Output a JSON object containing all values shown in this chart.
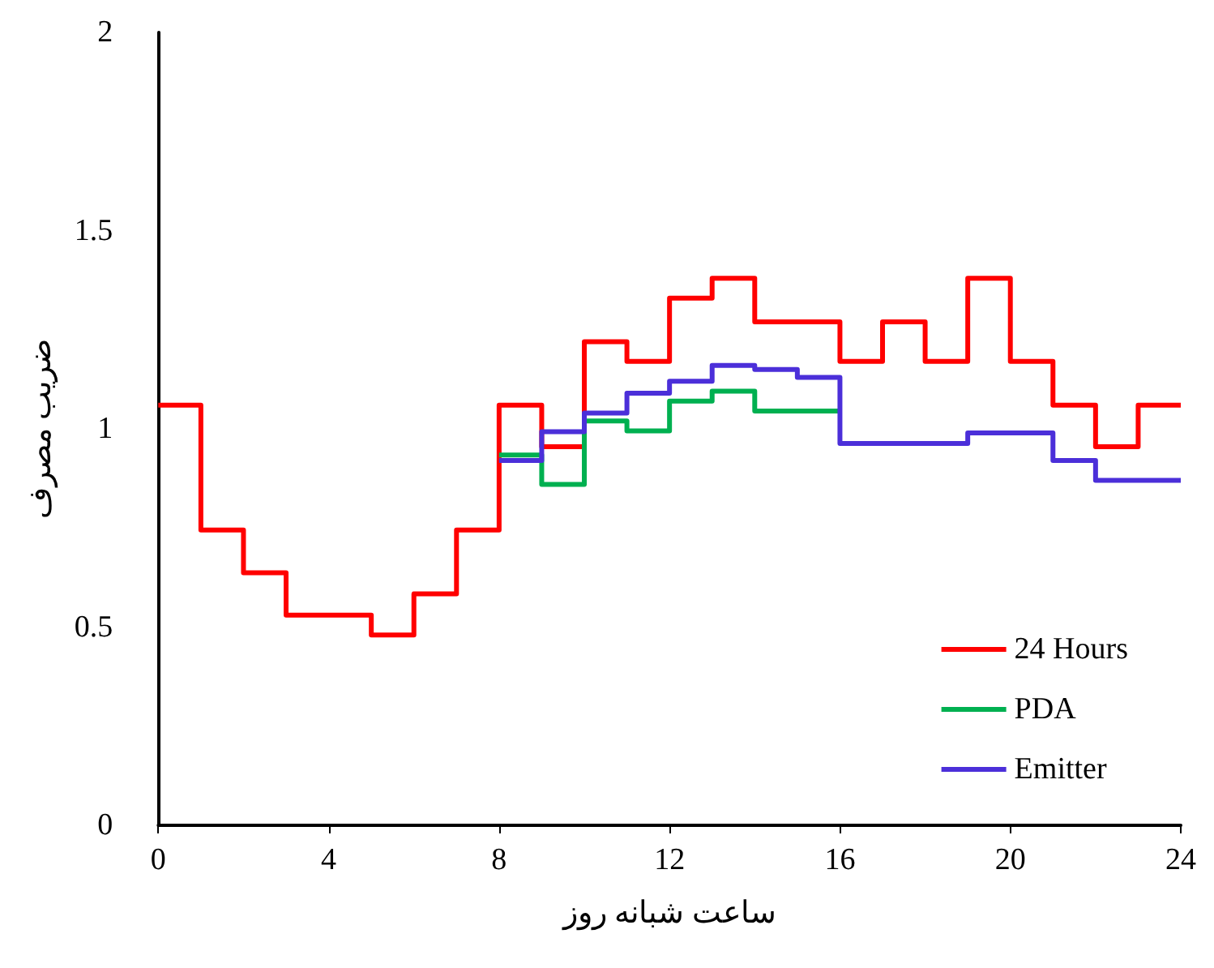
{
  "chart_data": {
    "type": "step",
    "xlabel": "ساعت شبانه روز",
    "ylabel": "ضریب مصرف",
    "xlim": [
      0,
      24
    ],
    "xticks": [
      0,
      4,
      8,
      12,
      16,
      20,
      24
    ],
    "ylim": [
      0,
      2
    ],
    "yticks": [
      0,
      0.5,
      1,
      1.5,
      2
    ],
    "grid": false,
    "legend": "bottom right",
    "marker": "none",
    "line_style": "solid",
    "series": [
      {
        "name": "24 Hours",
        "color": "#ff0000",
        "x": [
          0,
          1,
          2,
          3,
          4,
          5,
          6,
          7,
          8,
          9,
          10,
          11,
          12,
          13,
          14,
          15,
          16,
          17,
          18,
          19,
          20,
          21,
          22,
          23,
          24
        ],
        "values": [
          1.06,
          0.745,
          0.637,
          0.53,
          0.53,
          0.48,
          0.584,
          0.745,
          1.06,
          0.955,
          1.22,
          1.17,
          1.33,
          1.38,
          1.27,
          1.27,
          1.17,
          1.27,
          1.17,
          1.38,
          1.17,
          1.06,
          0.955,
          1.06,
          1.06
        ]
      },
      {
        "name": "PDA",
        "color": "#00b050",
        "x": [
          8,
          9,
          10,
          11,
          12,
          13,
          14,
          15,
          16
        ],
        "values": [
          0.934,
          0.86,
          1.02,
          0.995,
          1.07,
          1.095,
          1.045,
          1.045,
          1.045
        ]
      },
      {
        "name": "Emitter",
        "color": "#4b2fd9",
        "x": [
          8,
          9,
          10,
          11,
          12,
          13,
          14,
          15,
          16,
          17,
          18,
          19,
          20,
          21,
          22,
          23,
          24
        ],
        "values": [
          0.92,
          0.993,
          1.04,
          1.09,
          1.12,
          1.16,
          1.15,
          1.13,
          0.963,
          0.963,
          0.963,
          0.99,
          0.99,
          0.92,
          0.87,
          0.87,
          0.87
        ]
      }
    ]
  }
}
